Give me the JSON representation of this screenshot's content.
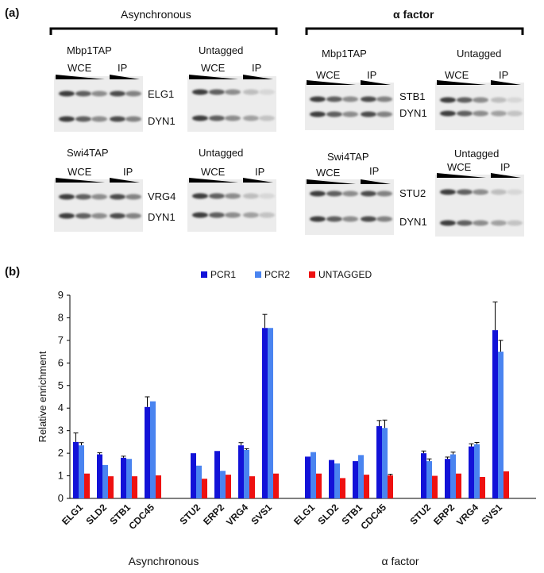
{
  "panel_a": {
    "label": "(a)",
    "groups": [
      {
        "title": "Asynchronous",
        "blots": [
          {
            "title": "Mbp1TAP",
            "wce": "WCE",
            "ip": "IP",
            "genes": [
              "ELG1",
              "DYN1"
            ]
          },
          {
            "title": "Untagged",
            "wce": "WCE",
            "ip": "IP",
            "genes": []
          },
          {
            "title": "Swi4TAP",
            "wce": "WCE",
            "ip": "IP",
            "genes": [
              "VRG4",
              "DYN1"
            ]
          },
          {
            "title": "Untagged",
            "wce": "WCE",
            "ip": "IP",
            "genes": []
          }
        ]
      },
      {
        "title": "α factor",
        "blots": [
          {
            "title": "Mbp1TAP",
            "wce": "WCE",
            "ip": "IP",
            "genes": [
              "STB1",
              "DYN1"
            ]
          },
          {
            "title": "Untagged",
            "wce": "WCE",
            "ip": "IP",
            "genes": []
          },
          {
            "title": "Swi4TAP",
            "wce": "WCE",
            "ip": "IP",
            "genes": [
              "STU2",
              "DYN1"
            ]
          },
          {
            "title": "Untagged",
            "wce": "WCE",
            "ip": "IP",
            "genes": []
          }
        ]
      }
    ]
  },
  "panel_b": {
    "label": "(b)"
  },
  "chart_data": {
    "type": "bar",
    "ylabel": "Relative enrichment",
    "ylim": [
      0,
      9
    ],
    "yticks": [
      0,
      1,
      2,
      3,
      4,
      5,
      6,
      7,
      8,
      9
    ],
    "groups": [
      {
        "label": "Asynchronous",
        "categories": [
          "ELG1",
          "SLD2",
          "STB1",
          "CDC45",
          "STU2",
          "ERP2",
          "VRG4",
          "SVS1"
        ]
      },
      {
        "label": "α factor",
        "categories": [
          "ELG1",
          "SLD2",
          "STB1",
          "CDC45",
          "STU2",
          "ERP2",
          "VRG4",
          "SVS1"
        ]
      }
    ],
    "series": [
      {
        "name": "PCR1",
        "color": "#1212d8",
        "values": [
          2.5,
          1.95,
          1.8,
          4.05,
          2.0,
          2.1,
          2.35,
          7.55,
          1.85,
          1.7,
          1.65,
          3.2,
          2.0,
          1.75,
          2.3,
          7.45
        ],
        "errors": [
          0.4,
          0.07,
          0.07,
          0.45,
          0,
          0,
          0.12,
          0.6,
          0,
          0,
          0,
          0.25,
          0.1,
          0.08,
          0.12,
          1.25
        ]
      },
      {
        "name": "PCR2",
        "color": "#4a84f0",
        "values": [
          2.35,
          1.48,
          1.75,
          4.3,
          1.45,
          1.22,
          2.15,
          7.55,
          2.05,
          1.55,
          1.92,
          3.12,
          1.65,
          1.95,
          2.4,
          6.5
        ],
        "errors": [
          0.12,
          0,
          0,
          0,
          0,
          0,
          0.05,
          0,
          0,
          0,
          0,
          0.35,
          0.1,
          0.1,
          0.08,
          0.5
        ]
      },
      {
        "name": "UNTAGGED",
        "color": "#ee1111",
        "values": [
          1.1,
          0.98,
          0.98,
          1.02,
          0.87,
          1.05,
          0.98,
          1.1,
          1.1,
          0.9,
          1.05,
          1.02,
          1.0,
          1.1,
          0.95,
          1.2
        ],
        "errors": [
          0,
          0,
          0,
          0,
          0,
          0,
          0,
          0,
          0,
          0,
          0,
          0.05,
          0,
          0,
          0,
          0
        ]
      }
    ],
    "legend": "top-center"
  }
}
